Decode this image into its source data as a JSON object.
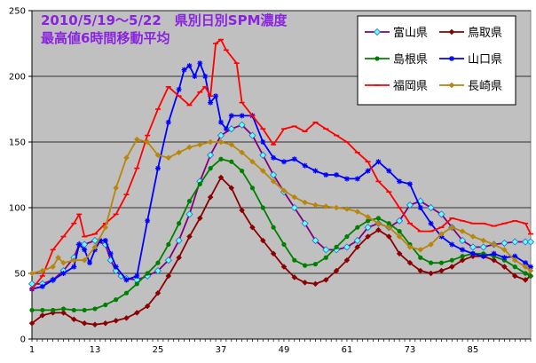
{
  "chart_data": {
    "type": "line",
    "title": "2010/5/19～5/22　県別日別SPM濃度",
    "subtitle": "最高値6時間移動平均",
    "ylim": [
      0,
      250
    ],
    "yticks": [
      0,
      50,
      100,
      150,
      200,
      250
    ],
    "xlim": [
      1,
      96
    ],
    "xticks": [
      1,
      13,
      25,
      37,
      49,
      61,
      73,
      85
    ],
    "grid": true,
    "legend_position": "top-right",
    "series": [
      {
        "name": "富山県",
        "color": "#800080",
        "marker": "diamond-open-cyan",
        "points": [
          [
            1,
            42
          ],
          [
            3,
            42
          ],
          [
            5,
            45
          ],
          [
            7,
            52
          ],
          [
            9,
            62
          ],
          [
            10,
            72
          ],
          [
            11,
            72
          ],
          [
            13,
            75
          ],
          [
            15,
            72
          ],
          [
            16,
            60
          ],
          [
            17,
            52
          ],
          [
            18,
            48
          ],
          [
            19,
            46
          ],
          [
            21,
            45
          ],
          [
            23,
            48
          ],
          [
            25,
            52
          ],
          [
            27,
            60
          ],
          [
            29,
            75
          ],
          [
            31,
            95
          ],
          [
            33,
            120
          ],
          [
            35,
            140
          ],
          [
            37,
            155
          ],
          [
            39,
            160
          ],
          [
            41,
            163
          ],
          [
            43,
            155
          ],
          [
            45,
            140
          ],
          [
            47,
            125
          ],
          [
            49,
            112
          ],
          [
            51,
            100
          ],
          [
            53,
            88
          ],
          [
            55,
            75
          ],
          [
            57,
            68
          ],
          [
            59,
            68
          ],
          [
            61,
            70
          ],
          [
            63,
            75
          ],
          [
            65,
            85
          ],
          [
            67,
            88
          ],
          [
            69,
            85
          ],
          [
            71,
            90
          ],
          [
            73,
            102
          ],
          [
            75,
            105
          ],
          [
            77,
            100
          ],
          [
            79,
            95
          ],
          [
            81,
            85
          ],
          [
            83,
            75
          ],
          [
            85,
            70
          ],
          [
            87,
            70
          ],
          [
            89,
            72
          ],
          [
            91,
            73
          ],
          [
            93,
            74
          ],
          [
            95,
            74
          ],
          [
            96,
            74
          ]
        ]
      },
      {
        "name": "鳥取県",
        "color": "#8b0000",
        "marker": "diamond-filled",
        "points": [
          [
            1,
            12
          ],
          [
            3,
            18
          ],
          [
            5,
            20
          ],
          [
            7,
            20
          ],
          [
            9,
            15
          ],
          [
            11,
            12
          ],
          [
            13,
            11
          ],
          [
            15,
            12
          ],
          [
            17,
            14
          ],
          [
            19,
            16
          ],
          [
            21,
            20
          ],
          [
            23,
            25
          ],
          [
            25,
            35
          ],
          [
            27,
            48
          ],
          [
            29,
            62
          ],
          [
            31,
            78
          ],
          [
            33,
            92
          ],
          [
            35,
            108
          ],
          [
            37,
            123
          ],
          [
            39,
            115
          ],
          [
            41,
            98
          ],
          [
            43,
            85
          ],
          [
            45,
            75
          ],
          [
            47,
            65
          ],
          [
            49,
            55
          ],
          [
            51,
            47
          ],
          [
            53,
            43
          ],
          [
            55,
            42
          ],
          [
            57,
            45
          ],
          [
            59,
            52
          ],
          [
            61,
            60
          ],
          [
            63,
            70
          ],
          [
            65,
            78
          ],
          [
            67,
            83
          ],
          [
            69,
            78
          ],
          [
            71,
            65
          ],
          [
            73,
            58
          ],
          [
            75,
            52
          ],
          [
            77,
            50
          ],
          [
            79,
            52
          ],
          [
            81,
            55
          ],
          [
            83,
            60
          ],
          [
            85,
            63
          ],
          [
            87,
            63
          ],
          [
            89,
            60
          ],
          [
            91,
            55
          ],
          [
            93,
            48
          ],
          [
            95,
            45
          ],
          [
            96,
            48
          ]
        ]
      },
      {
        "name": "島根県",
        "color": "#008000",
        "marker": "circle-filled",
        "points": [
          [
            1,
            22
          ],
          [
            3,
            22
          ],
          [
            5,
            22
          ],
          [
            7,
            23
          ],
          [
            9,
            22
          ],
          [
            11,
            22
          ],
          [
            13,
            23
          ],
          [
            15,
            26
          ],
          [
            17,
            30
          ],
          [
            19,
            35
          ],
          [
            21,
            42
          ],
          [
            23,
            50
          ],
          [
            25,
            58
          ],
          [
            27,
            72
          ],
          [
            29,
            88
          ],
          [
            31,
            105
          ],
          [
            33,
            118
          ],
          [
            35,
            130
          ],
          [
            37,
            137
          ],
          [
            39,
            135
          ],
          [
            41,
            128
          ],
          [
            43,
            115
          ],
          [
            45,
            100
          ],
          [
            47,
            85
          ],
          [
            49,
            72
          ],
          [
            51,
            60
          ],
          [
            53,
            56
          ],
          [
            55,
            57
          ],
          [
            57,
            62
          ],
          [
            59,
            70
          ],
          [
            61,
            78
          ],
          [
            63,
            85
          ],
          [
            65,
            90
          ],
          [
            67,
            92
          ],
          [
            69,
            88
          ],
          [
            71,
            82
          ],
          [
            73,
            72
          ],
          [
            75,
            62
          ],
          [
            77,
            58
          ],
          [
            79,
            58
          ],
          [
            81,
            60
          ],
          [
            83,
            63
          ],
          [
            85,
            65
          ],
          [
            87,
            65
          ],
          [
            89,
            63
          ],
          [
            91,
            60
          ],
          [
            93,
            55
          ],
          [
            95,
            50
          ],
          [
            96,
            48
          ]
        ]
      },
      {
        "name": "山口県",
        "color": "#0000ff",
        "marker": "star",
        "points": [
          [
            1,
            38
          ],
          [
            3,
            40
          ],
          [
            5,
            45
          ],
          [
            7,
            50
          ],
          [
            9,
            55
          ],
          [
            10,
            72
          ],
          [
            11,
            68
          ],
          [
            12,
            58
          ],
          [
            13,
            68
          ],
          [
            14,
            75
          ],
          [
            15,
            75
          ],
          [
            16,
            65
          ],
          [
            17,
            55
          ],
          [
            19,
            45
          ],
          [
            21,
            48
          ],
          [
            23,
            90
          ],
          [
            25,
            130
          ],
          [
            27,
            165
          ],
          [
            29,
            190
          ],
          [
            30,
            205
          ],
          [
            31,
            208
          ],
          [
            32,
            200
          ],
          [
            33,
            210
          ],
          [
            34,
            200
          ],
          [
            35,
            180
          ],
          [
            36,
            185
          ],
          [
            37,
            165
          ],
          [
            38,
            160
          ],
          [
            39,
            170
          ],
          [
            41,
            170
          ],
          [
            43,
            170
          ],
          [
            45,
            150
          ],
          [
            47,
            138
          ],
          [
            49,
            135
          ],
          [
            51,
            137
          ],
          [
            53,
            132
          ],
          [
            55,
            128
          ],
          [
            57,
            125
          ],
          [
            59,
            125
          ],
          [
            61,
            122
          ],
          [
            63,
            122
          ],
          [
            65,
            128
          ],
          [
            67,
            135
          ],
          [
            69,
            128
          ],
          [
            71,
            120
          ],
          [
            73,
            118
          ],
          [
            75,
            100
          ],
          [
            77,
            88
          ],
          [
            79,
            78
          ],
          [
            81,
            72
          ],
          [
            83,
            68
          ],
          [
            85,
            65
          ],
          [
            87,
            63
          ],
          [
            89,
            65
          ],
          [
            91,
            62
          ],
          [
            93,
            63
          ],
          [
            95,
            58
          ],
          [
            96,
            55
          ]
        ]
      },
      {
        "name": "福岡県",
        "color": "#ff0000",
        "marker": "dash",
        "points": [
          [
            1,
            38
          ],
          [
            3,
            48
          ],
          [
            5,
            68
          ],
          [
            7,
            78
          ],
          [
            9,
            88
          ],
          [
            10,
            95
          ],
          [
            11,
            78
          ],
          [
            13,
            80
          ],
          [
            15,
            88
          ],
          [
            17,
            95
          ],
          [
            19,
            110
          ],
          [
            21,
            130
          ],
          [
            23,
            155
          ],
          [
            25,
            175
          ],
          [
            27,
            192
          ],
          [
            29,
            185
          ],
          [
            31,
            178
          ],
          [
            33,
            188
          ],
          [
            34,
            192
          ],
          [
            35,
            185
          ],
          [
            36,
            225
          ],
          [
            37,
            228
          ],
          [
            38,
            220
          ],
          [
            40,
            210
          ],
          [
            41,
            180
          ],
          [
            43,
            170
          ],
          [
            45,
            160
          ],
          [
            47,
            148
          ],
          [
            49,
            160
          ],
          [
            51,
            162
          ],
          [
            53,
            158
          ],
          [
            55,
            165
          ],
          [
            57,
            160
          ],
          [
            59,
            155
          ],
          [
            61,
            150
          ],
          [
            63,
            142
          ],
          [
            65,
            135
          ],
          [
            67,
            120
          ],
          [
            69,
            112
          ],
          [
            71,
            100
          ],
          [
            73,
            88
          ],
          [
            75,
            82
          ],
          [
            77,
            82
          ],
          [
            79,
            85
          ],
          [
            81,
            92
          ],
          [
            83,
            90
          ],
          [
            85,
            88
          ],
          [
            87,
            88
          ],
          [
            89,
            86
          ],
          [
            91,
            88
          ],
          [
            93,
            90
          ],
          [
            95,
            88
          ],
          [
            96,
            80
          ]
        ]
      },
      {
        "name": "長崎県",
        "color": "#b8860b",
        "marker": "diamond-filled",
        "points": [
          [
            1,
            50
          ],
          [
            3,
            52
          ],
          [
            5,
            55
          ],
          [
            6,
            62
          ],
          [
            7,
            58
          ],
          [
            9,
            60
          ],
          [
            11,
            60
          ],
          [
            13,
            70
          ],
          [
            15,
            85
          ],
          [
            17,
            115
          ],
          [
            19,
            138
          ],
          [
            21,
            152
          ],
          [
            23,
            150
          ],
          [
            25,
            140
          ],
          [
            27,
            138
          ],
          [
            29,
            142
          ],
          [
            31,
            146
          ],
          [
            33,
            148
          ],
          [
            35,
            150
          ],
          [
            37,
            150
          ],
          [
            39,
            148
          ],
          [
            41,
            142
          ],
          [
            43,
            135
          ],
          [
            45,
            128
          ],
          [
            47,
            120
          ],
          [
            49,
            113
          ],
          [
            51,
            108
          ],
          [
            53,
            104
          ],
          [
            55,
            102
          ],
          [
            57,
            101
          ],
          [
            59,
            100
          ],
          [
            61,
            99
          ],
          [
            63,
            97
          ],
          [
            65,
            93
          ],
          [
            67,
            88
          ],
          [
            69,
            85
          ],
          [
            71,
            78
          ],
          [
            73,
            70
          ],
          [
            75,
            68
          ],
          [
            77,
            72
          ],
          [
            79,
            80
          ],
          [
            81,
            85
          ],
          [
            83,
            82
          ],
          [
            85,
            78
          ],
          [
            87,
            75
          ],
          [
            89,
            72
          ],
          [
            91,
            68
          ],
          [
            93,
            60
          ],
          [
            95,
            55
          ],
          [
            96,
            52
          ]
        ]
      }
    ]
  }
}
